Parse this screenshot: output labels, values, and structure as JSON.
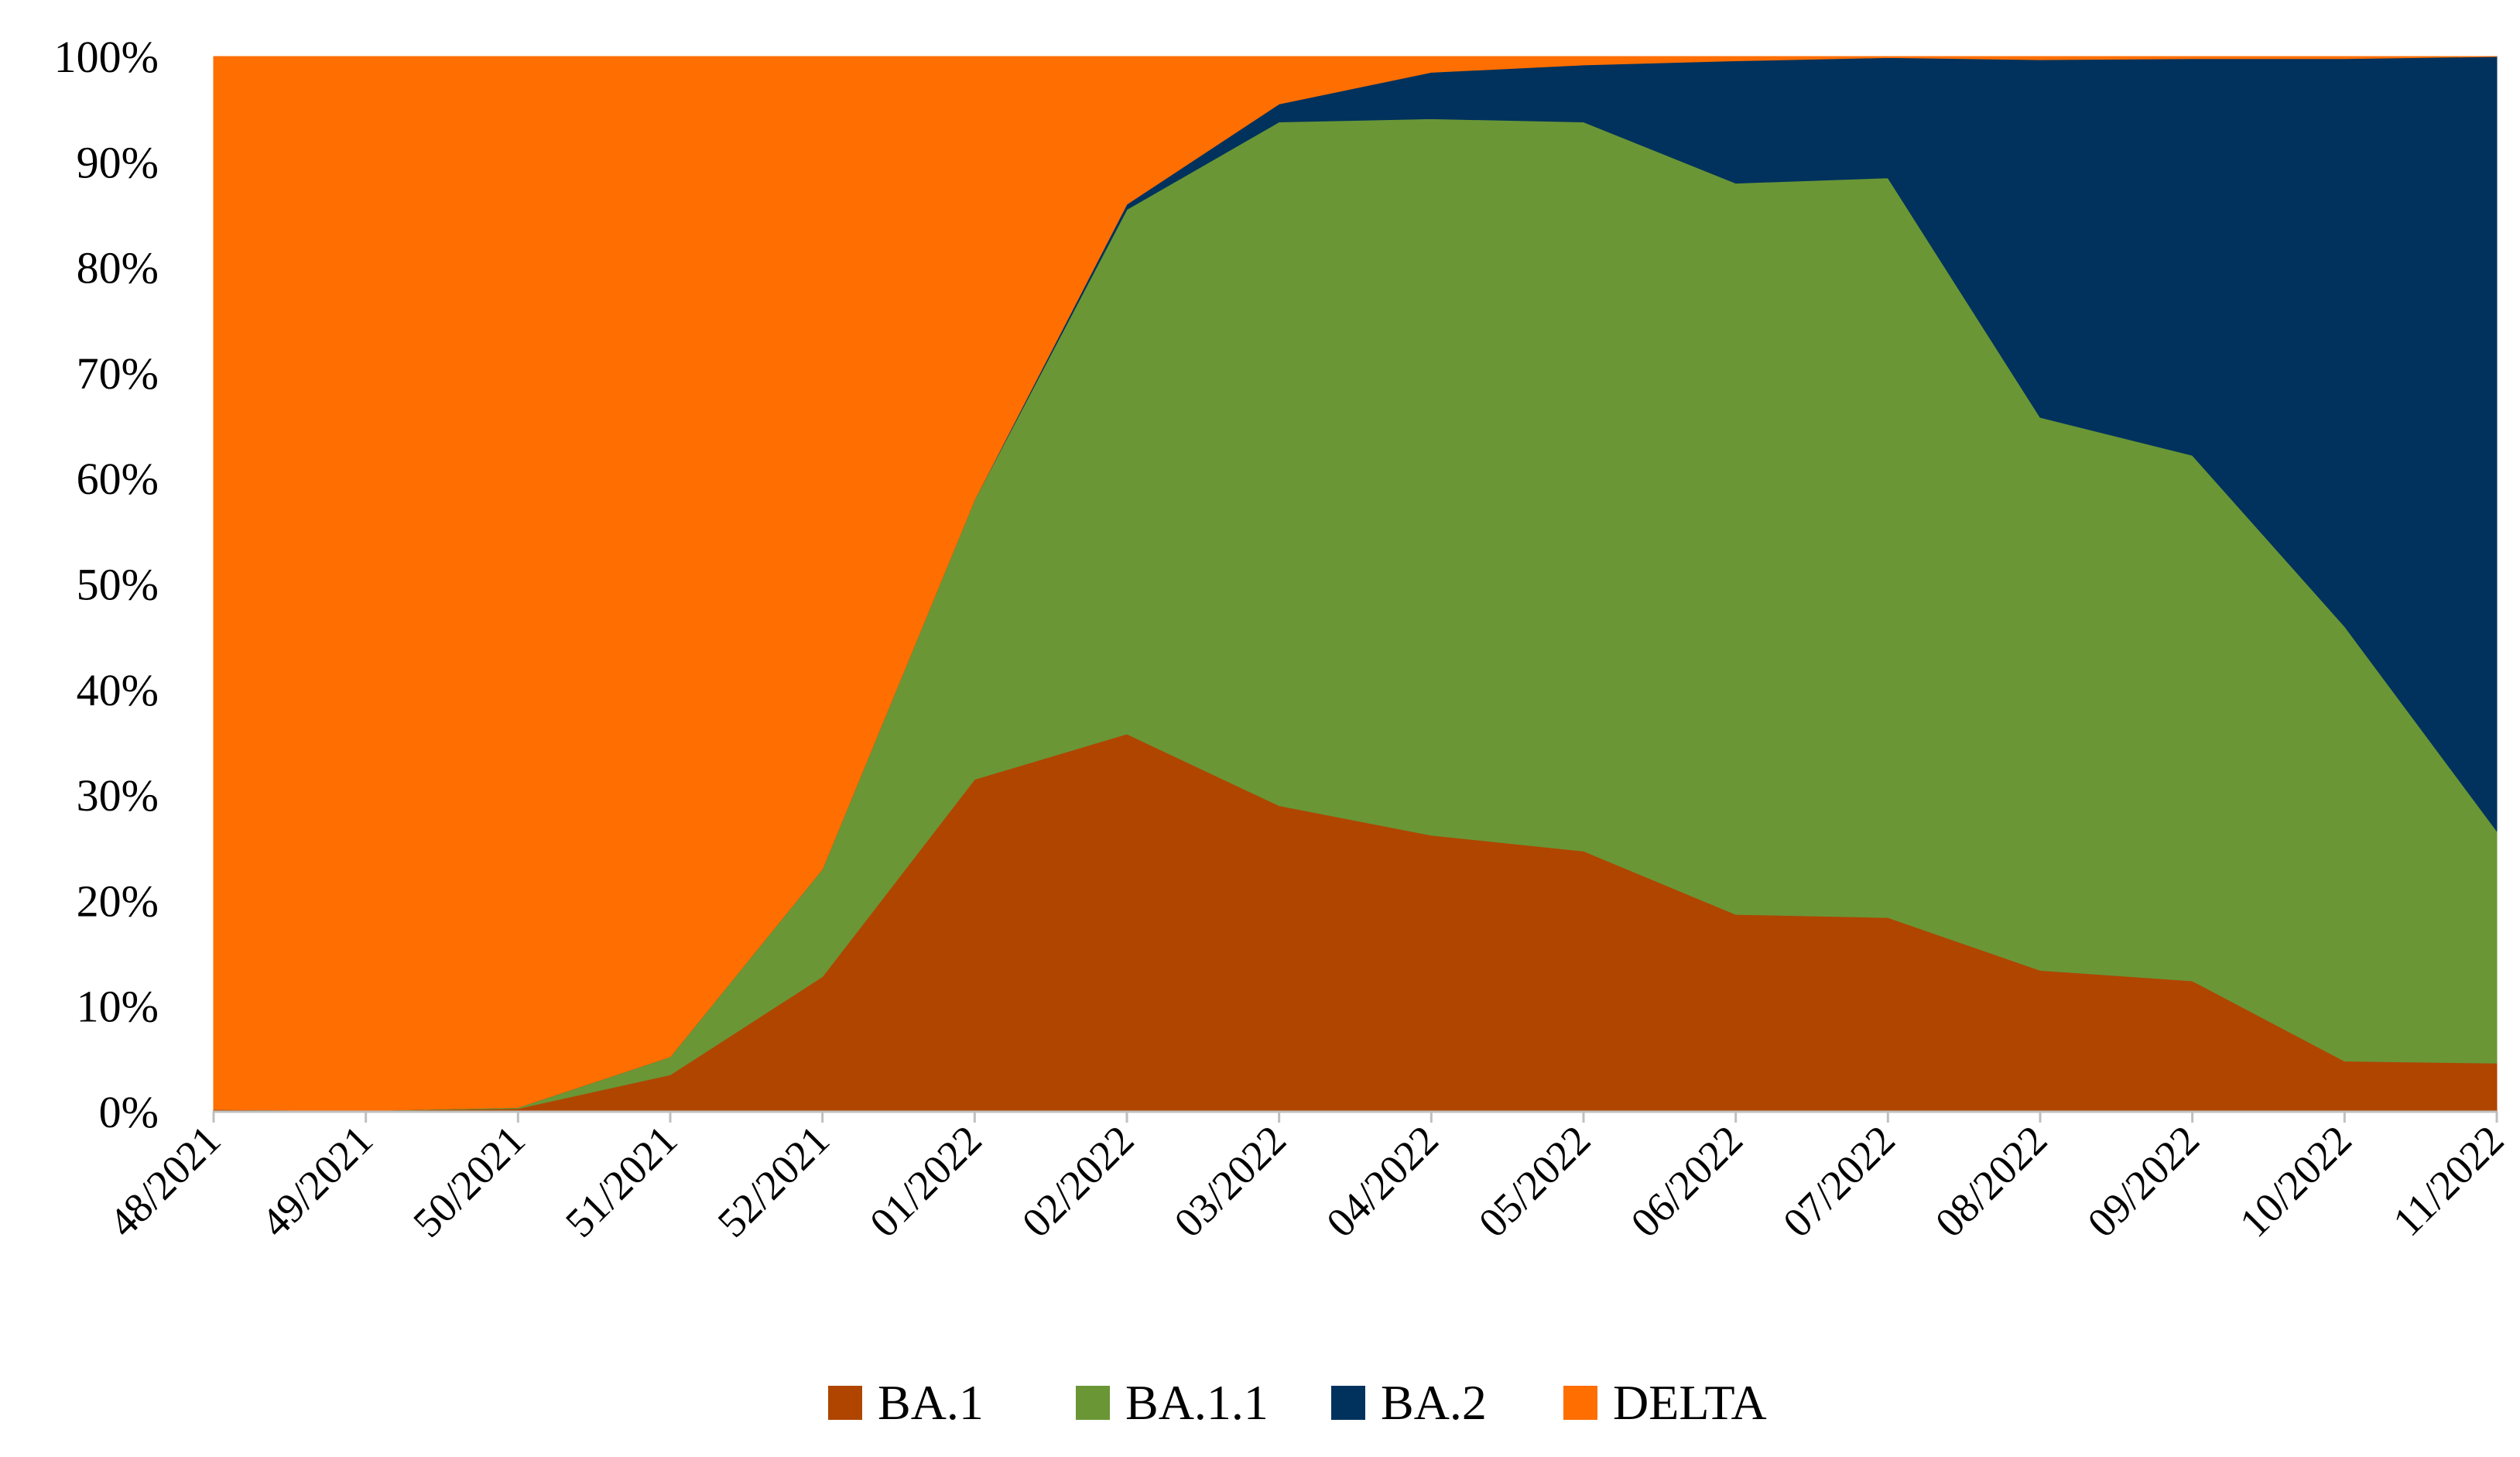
{
  "chart_data": {
    "type": "area",
    "stacked": true,
    "percent": true,
    "categories": [
      "48/2021",
      "49/2021",
      "50/2021",
      "51/2021",
      "52/2021",
      "01/2022",
      "02/2022",
      "03/2022",
      "04/2022",
      "05/2022",
      "06/2022",
      "07/2022",
      "08/2022",
      "09/2022",
      "10/2022",
      "11/2022"
    ],
    "series": [
      {
        "name": "BA.1",
        "color": "#B04500",
        "values": [
          0.2,
          0.1,
          0.3,
          3.5,
          12.8,
          31.5,
          35.8,
          29.0,
          26.2,
          24.7,
          18.7,
          18.4,
          13.4,
          12.4,
          4.8,
          4.6
        ]
      },
      {
        "name": "BA.1.1",
        "color": "#6A9636",
        "values": [
          0.0,
          0.0,
          0.1,
          1.7,
          10.2,
          26.5,
          49.7,
          64.8,
          67.9,
          69.1,
          69.3,
          70.1,
          52.4,
          49.8,
          41.2,
          22.0
        ]
      },
      {
        "name": "BA.2",
        "color": "#00325D",
        "values": [
          0.0,
          0.0,
          0.0,
          0.0,
          0.0,
          0.0,
          0.5,
          1.7,
          4.4,
          5.4,
          11.6,
          11.4,
          33.9,
          37.6,
          53.8,
          73.4
        ]
      },
      {
        "name": "DELTA",
        "color": "#FF6E00",
        "values": [
          99.8,
          99.9,
          99.6,
          94.8,
          77.0,
          42.0,
          14.0,
          4.5,
          1.5,
          0.8,
          0.4,
          0.1,
          0.3,
          0.2,
          0.2,
          0.0
        ]
      }
    ],
    "y_ticks": [
      "0%",
      "10%",
      "20%",
      "30%",
      "40%",
      "50%",
      "60%",
      "70%",
      "80%",
      "90%",
      "100%"
    ],
    "ylim": [
      0,
      100
    ],
    "title": "",
    "xlabel": "",
    "ylabel": "",
    "grid": false,
    "legend_position": "bottom"
  }
}
